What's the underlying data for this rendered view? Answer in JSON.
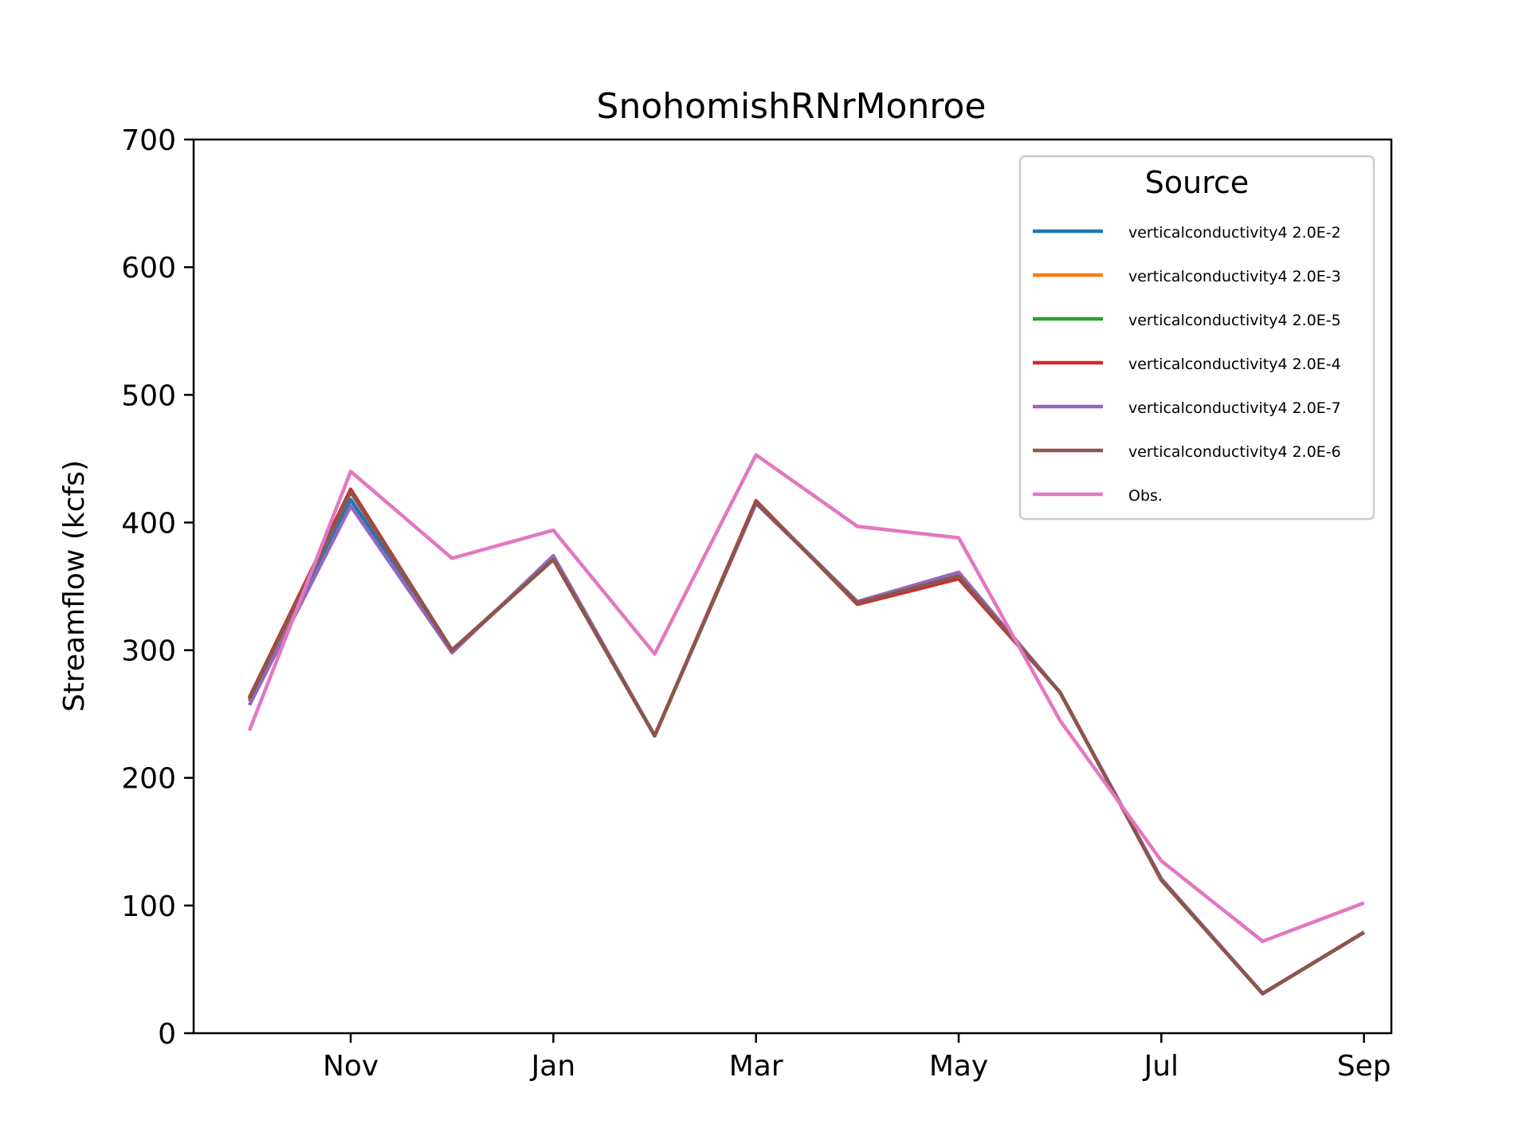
{
  "chart_data": {
    "type": "line",
    "title": "SnohomishRNrMonroe",
    "xlabel": "",
    "ylabel": "Streamflow (kcfs)",
    "ylim": [
      0,
      700
    ],
    "yticks": [
      0,
      100,
      200,
      300,
      400,
      500,
      600,
      700
    ],
    "xlim": [
      0.45,
      12.27
    ],
    "xticks": [
      {
        "label": "Nov",
        "x": 2
      },
      {
        "label": "Jan",
        "x": 4
      },
      {
        "label": "Mar",
        "x": 6
      },
      {
        "label": "May",
        "x": 8
      },
      {
        "label": "Jul",
        "x": 10
      },
      {
        "label": "Sep",
        "x": 12
      }
    ],
    "x": [
      1,
      2,
      3,
      4,
      5,
      6,
      7,
      8,
      9,
      10,
      11,
      12
    ],
    "grid": false,
    "legend": {
      "title": "Source",
      "placement": "upper right"
    },
    "series": [
      {
        "name": "verticalconductivity4 2.0E-2",
        "color": "#1f77b4",
        "values": [
          260,
          418,
          299,
          372,
          233,
          416,
          338,
          359,
          267,
          120,
          31,
          79
        ]
      },
      {
        "name": "verticalconductivity4 2.0E-3",
        "color": "#ff7f0e",
        "values": [
          261,
          424,
          300,
          372,
          233,
          416,
          337,
          357,
          267,
          120,
          31,
          79
        ]
      },
      {
        "name": "verticalconductivity4 2.0E-5",
        "color": "#2ca02c",
        "values": [
          262,
          425,
          300,
          371,
          233,
          416,
          337,
          357,
          267,
          120,
          31,
          79
        ]
      },
      {
        "name": "verticalconductivity4 2.0E-4",
        "color": "#d62728",
        "values": [
          263,
          426,
          300,
          371,
          233,
          417,
          336,
          356,
          267,
          120,
          31,
          79
        ]
      },
      {
        "name": "verticalconductivity4 2.0E-7",
        "color": "#9467bd",
        "values": [
          257,
          413,
          298,
          374,
          233,
          415,
          338,
          361,
          267,
          121,
          31,
          79
        ]
      },
      {
        "name": "verticalconductivity4 2.0E-6",
        "color": "#8c564b",
        "values": [
          262,
          424,
          300,
          371,
          233,
          416,
          337,
          358,
          267,
          120,
          31,
          79
        ]
      },
      {
        "name": "Obs.",
        "color": "#e377c2",
        "values": [
          237,
          440,
          372,
          394,
          297,
          453,
          397,
          388,
          245,
          135,
          72,
          102
        ]
      }
    ]
  }
}
